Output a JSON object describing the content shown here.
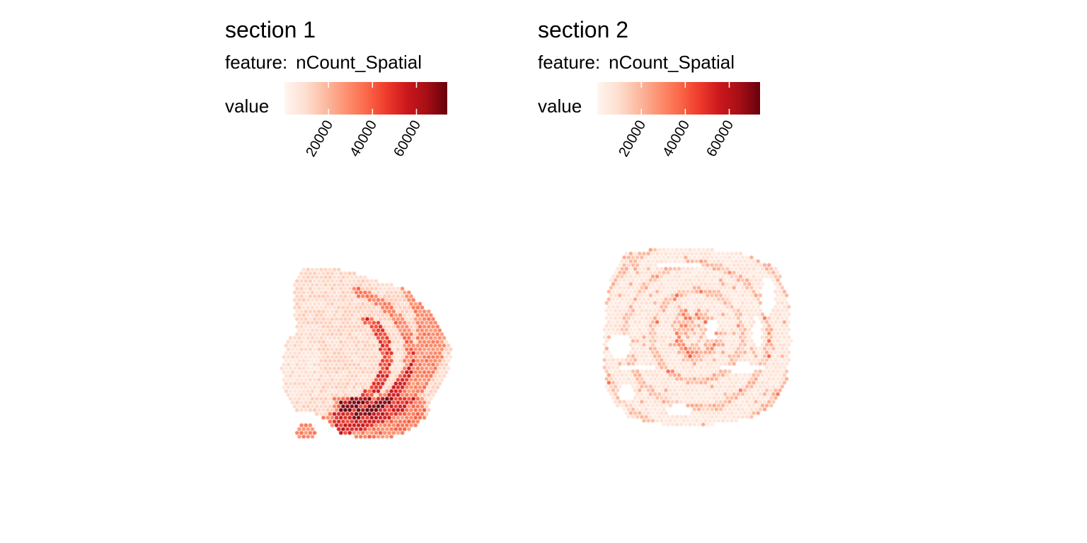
{
  "chart_data": [
    {
      "type": "heatmap",
      "title": "section 1",
      "feature_label": "feature:",
      "feature_name": "nCount_Spatial",
      "legend_title": "value",
      "colorscale": [
        "#fff5f0",
        "#fee0d2",
        "#fcbba1",
        "#fc9272",
        "#fb6a4a",
        "#ef3b2c",
        "#cb181d",
        "#a50f15",
        "#67000d"
      ],
      "value_range": [
        0,
        74000
      ],
      "ticks": [
        20000,
        40000,
        60000
      ],
      "tick_labels": [
        "20000",
        "40000",
        "60000"
      ],
      "grid": false
    },
    {
      "type": "heatmap",
      "title": "section 2",
      "feature_label": "feature:",
      "feature_name": "nCount_Spatial",
      "legend_title": "value",
      "colorscale": [
        "#fff5f0",
        "#fee0d2",
        "#fcbba1",
        "#fc9272",
        "#fb6a4a",
        "#ef3b2c",
        "#cb181d",
        "#a50f15",
        "#67000d"
      ],
      "value_range": [
        0,
        74000
      ],
      "ticks": [
        20000,
        40000,
        60000
      ],
      "tick_labels": [
        "20000",
        "40000",
        "60000"
      ],
      "grid": false
    }
  ]
}
